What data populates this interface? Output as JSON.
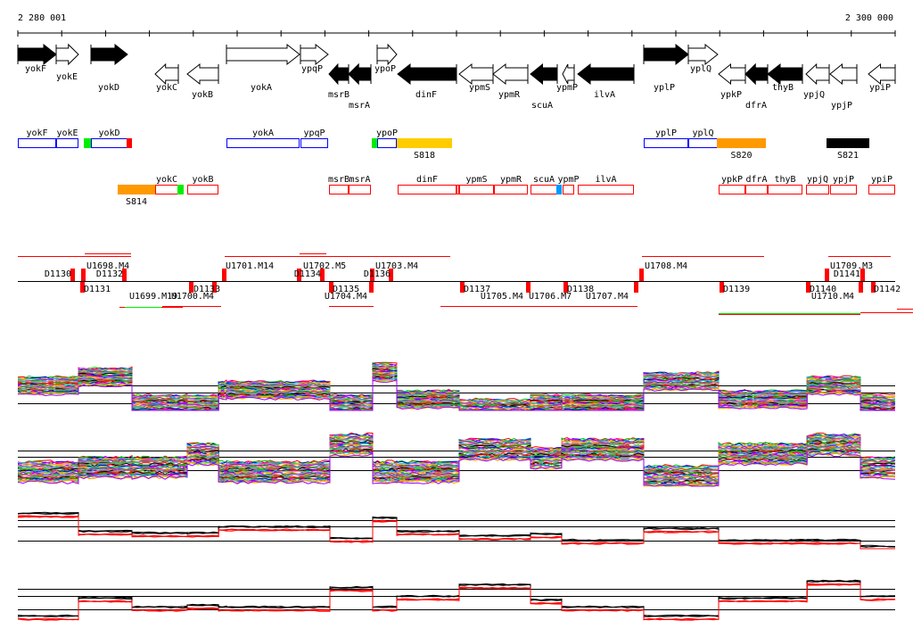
{
  "ruler": {
    "start_label": "2 280 001",
    "end_label": "2 300 000",
    "start": 2280001,
    "end": 2300000
  },
  "genes": [
    {
      "name": "yokF",
      "strand": "+",
      "filled": true
    },
    {
      "name": "yokE",
      "strand": "+",
      "filled": false
    },
    {
      "name": "yokD",
      "strand": "+",
      "filled": true
    },
    {
      "name": "yokC",
      "strand": "-",
      "filled": false
    },
    {
      "name": "yokB",
      "strand": "-",
      "filled": false
    },
    {
      "name": "yokA",
      "strand": "+",
      "filled": false
    },
    {
      "name": "ypqP",
      "strand": "+",
      "filled": false
    },
    {
      "name": "msrB",
      "strand": "-",
      "filled": true
    },
    {
      "name": "msrA",
      "strand": "-",
      "filled": true
    },
    {
      "name": "ypoP",
      "strand": "+",
      "filled": false
    },
    {
      "name": "dinF",
      "strand": "-",
      "filled": true
    },
    {
      "name": "ypmS",
      "strand": "-",
      "filled": false
    },
    {
      "name": "ypmR",
      "strand": "-",
      "filled": false
    },
    {
      "name": "scuA",
      "strand": "-",
      "filled": true
    },
    {
      "name": "ypmP",
      "strand": "-",
      "filled": false
    },
    {
      "name": "ilvA",
      "strand": "-",
      "filled": true
    },
    {
      "name": "yplP",
      "strand": "+",
      "filled": true
    },
    {
      "name": "yplQ",
      "strand": "+",
      "filled": false
    },
    {
      "name": "ypkP",
      "strand": "-",
      "filled": false
    },
    {
      "name": "dfrA",
      "strand": "-",
      "filled": true
    },
    {
      "name": "thyB",
      "strand": "-",
      "filled": true
    },
    {
      "name": "ypjQ",
      "strand": "-",
      "filled": false
    },
    {
      "name": "ypjP",
      "strand": "-",
      "filled": false
    },
    {
      "name": "ypiP",
      "strand": "-",
      "filled": false
    }
  ],
  "forward_boxes": [
    {
      "label": "yokF",
      "color": "#0000ff",
      "filled": false
    },
    {
      "label": "yokE",
      "color": "#0000ff",
      "filled": false
    },
    {
      "label": "",
      "color": "#00ee00",
      "filled": true
    },
    {
      "label": "yokD",
      "color": "#0000ff",
      "filled": false
    },
    {
      "label": "",
      "color": "#ff0000",
      "filled": true
    },
    {
      "label": "yokA",
      "color": "#0000ff",
      "filled": false
    },
    {
      "label": "ypqP",
      "color": "#0000ff",
      "filled": false
    },
    {
      "label": "",
      "color": "#00ee00",
      "filled": true
    },
    {
      "label": "ypoP",
      "color": "#0000ff",
      "filled": false
    },
    {
      "label": "S818",
      "color": "#ffcc00",
      "filled": true
    },
    {
      "label": "yplP",
      "color": "#0000ff",
      "filled": false
    },
    {
      "label": "yplQ",
      "color": "#0000ff",
      "filled": false
    },
    {
      "label": "S820",
      "color": "#ff9900",
      "filled": true
    },
    {
      "label": "S821",
      "color": "#000000",
      "filled": true
    }
  ],
  "reverse_boxes": [
    {
      "label": "S814",
      "color": "#ff9900",
      "filled": true
    },
    {
      "label": "yokC",
      "color": "#ff0000",
      "filled": false
    },
    {
      "label": "",
      "color": "#00ee00",
      "filled": true
    },
    {
      "label": "yokB",
      "color": "#ff0000",
      "filled": false
    },
    {
      "label": "msrB",
      "color": "#ff0000",
      "filled": false
    },
    {
      "label": "msrA",
      "color": "#ff0000",
      "filled": false
    },
    {
      "label": "dinF",
      "color": "#ff0000",
      "filled": false
    },
    {
      "label": "",
      "color": "#ff0000",
      "filled": false
    },
    {
      "label": "ypmS",
      "color": "#ff0000",
      "filled": false
    },
    {
      "label": "ypmR",
      "color": "#ff0000",
      "filled": false
    },
    {
      "label": "scuA",
      "color": "#ff0000",
      "filled": false
    },
    {
      "label": "",
      "color": "#0099ff",
      "filled": true
    },
    {
      "label": "ypmP",
      "color": "#ff0000",
      "filled": false
    },
    {
      "label": "ilvA",
      "color": "#ff0000",
      "filled": false
    },
    {
      "label": "ypkP",
      "color": "#ff0000",
      "filled": false
    },
    {
      "label": "dfrA",
      "color": "#ff0000",
      "filled": false
    },
    {
      "label": "thyB",
      "color": "#ff0000",
      "filled": false
    },
    {
      "label": "ypjQ",
      "color": "#ff0000",
      "filled": false
    },
    {
      "label": "ypjP",
      "color": "#ff0000",
      "filled": false
    },
    {
      "label": "ypiP",
      "color": "#ff0000",
      "filled": false
    }
  ],
  "transcription_units": [
    "D1130",
    "U1698.M4",
    "D1132",
    "D1131",
    "U1699.M19",
    "U1700.M4",
    "D1133",
    "U1701.M14",
    "U1702.M5",
    "D1134",
    "D1135",
    "U1704.M4",
    "U1703.M4",
    "D1136",
    "D1137",
    "U1705.M4",
    "U1706.M7",
    "D1138",
    "U1707.M4",
    "U1708.M4",
    "D1139",
    "D1140",
    "U1710.M4",
    "U1709.M3",
    "D1141",
    "D1142"
  ],
  "expression_tracks": {
    "breakpoints": [
      2280001,
      2281383,
      2282603,
      2283863,
      2284576,
      2284757,
      2287115,
      2288090,
      2288639,
      2290062,
      2291688,
      2292399,
      2294269,
      2295976,
      2297989,
      2299208,
      2300000
    ],
    "panels": [
      {
        "name": "forward-conditions",
        "style": "multicolor",
        "levels": [
          0.64,
          0.82,
          0.27,
          0.27,
          0.55,
          0.55,
          0.27,
          0.91,
          0.36,
          0.18,
          0.27,
          0.27,
          0.73,
          0.36,
          0.64,
          0.27
        ]
      },
      {
        "name": "reverse-conditions",
        "style": "multicolor",
        "levels": [
          0.38,
          0.46,
          0.46,
          0.69,
          0.38,
          0.38,
          0.85,
          0.38,
          0.38,
          0.77,
          0.62,
          0.77,
          0.31,
          0.69,
          0.85,
          0.46
        ]
      },
      {
        "name": "forward-summary",
        "style": "blackred",
        "levels": [
          0.8,
          0.4,
          0.36,
          0.36,
          0.5,
          0.5,
          0.24,
          0.7,
          0.4,
          0.3,
          0.34,
          0.2,
          0.46,
          0.2,
          0.2,
          0.06
        ]
      },
      {
        "name": "reverse-summary",
        "style": "blackred",
        "levels": [
          0.2,
          0.6,
          0.4,
          0.44,
          0.4,
          0.4,
          0.84,
          0.4,
          0.64,
          0.9,
          0.56,
          0.4,
          0.2,
          0.6,
          0.98,
          0.64
        ]
      }
    ],
    "palette": [
      "#ff0000",
      "#00cc00",
      "#0000ff",
      "#ff00ff",
      "#00cccc",
      "#cccc00",
      "#ff9900",
      "#9900ff",
      "#009966",
      "#996633",
      "#ff6699",
      "#6699ff",
      "#33cc33",
      "#cc3300",
      "#000000",
      "#888888"
    ]
  }
}
